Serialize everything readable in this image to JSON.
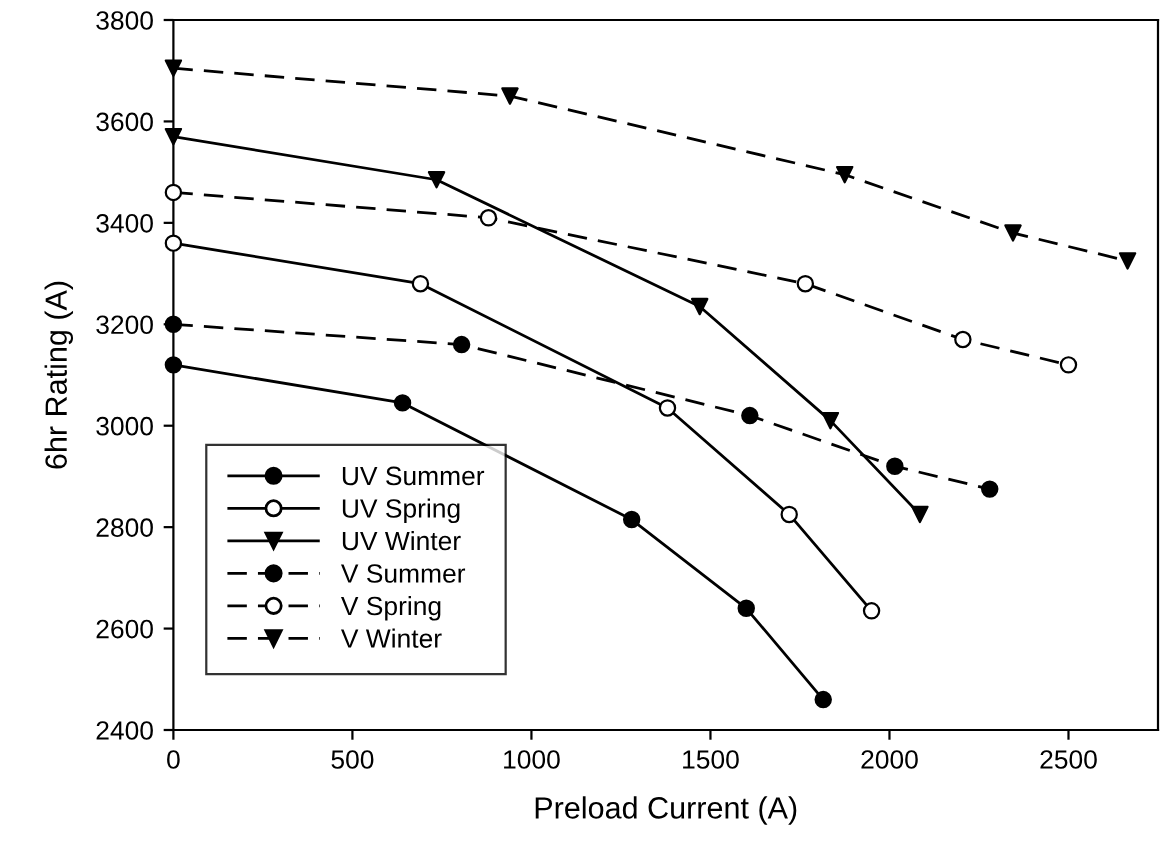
{
  "chart_data": {
    "type": "line",
    "xlabel": "Preload Current (A)",
    "ylabel": "6hr Rating (A)",
    "xlim": [
      0,
      2750
    ],
    "xticks": [
      0,
      500,
      1000,
      1500,
      2000,
      2500
    ],
    "ylim": [
      2400,
      3800
    ],
    "yticks": [
      2400,
      2600,
      2800,
      3000,
      3200,
      3400,
      3600,
      3800
    ],
    "grid": false,
    "legend": "bottom left",
    "series": [
      {
        "name": "UV Summer",
        "color": "#000000",
        "colors": [
          "#000000",
          "#000000",
          "#000000",
          "#000000",
          "#000000"
        ],
        "marker": "circle",
        "line_style": "solid",
        "x": [
          0,
          640,
          1280,
          1600,
          1815
        ],
        "values": [
          3120,
          3045,
          2815,
          2640,
          2460
        ]
      },
      {
        "name": "UV Spring",
        "color": "#000000",
        "colors": [
          "#ffffff",
          "#ffffff",
          "#ffffff",
          "#ffffff",
          "#ffffff"
        ],
        "marker": "circle",
        "line_style": "solid",
        "x": [
          0,
          690,
          1380,
          1720,
          1950
        ],
        "values": [
          3360,
          3280,
          3035,
          2825,
          2635
        ]
      },
      {
        "name": "UV Winter",
        "color": "#000000",
        "colors": [
          "#000000",
          "#000000",
          "#000000",
          "#000000",
          "#000000"
        ],
        "marker": "triangle",
        "line_style": "solid",
        "x": [
          0,
          735,
          1470,
          1835,
          2085
        ],
        "values": [
          3570,
          3485,
          3235,
          3010,
          2825
        ]
      },
      {
        "name": "V Summer",
        "color": "#000000",
        "colors": [
          "#000000",
          "#000000",
          "#000000",
          "#000000",
          "#000000"
        ],
        "marker": "circle",
        "line_style": "dashed",
        "x": [
          0,
          805,
          1610,
          2015,
          2280
        ],
        "values": [
          3200,
          3160,
          3020,
          2920,
          2875
        ]
      },
      {
        "name": "V Spring",
        "color": "#000000",
        "colors": [
          "#ffffff",
          "#ffffff",
          "#ffffff",
          "#ffffff",
          "#ffffff"
        ],
        "marker": "circle",
        "line_style": "dashed",
        "x": [
          0,
          880,
          1765,
          2205,
          2500
        ],
        "values": [
          3460,
          3410,
          3280,
          3170,
          3120
        ]
      },
      {
        "name": "V Winter",
        "color": "#000000",
        "colors": [
          "#000000",
          "#000000",
          "#000000",
          "#000000",
          "#000000"
        ],
        "marker": "triangle",
        "line_style": "dashed",
        "x": [
          0,
          940,
          1875,
          2345,
          2665
        ],
        "values": [
          3705,
          3650,
          3495,
          3380,
          3325
        ]
      }
    ]
  }
}
